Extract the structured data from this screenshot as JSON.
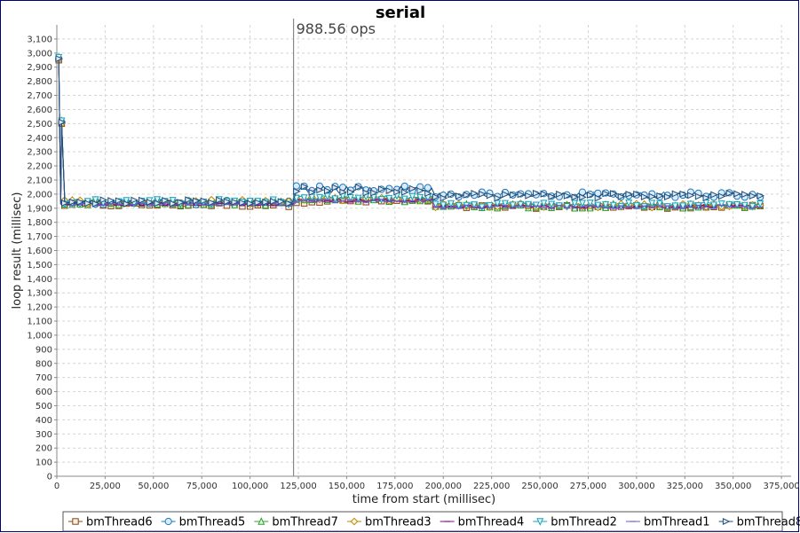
{
  "chart_data": {
    "type": "line",
    "title": "serial",
    "xlabel": "time from start (millisec)",
    "ylabel": "loop result (millisec)",
    "xlim": [
      0,
      380000
    ],
    "ylim": [
      0,
      3200
    ],
    "x_ticks": [
      "0",
      "25,000",
      "50,000",
      "75,000",
      "100,000",
      "125,000",
      "150,000",
      "175,000",
      "200,000",
      "225,000",
      "250,000",
      "275,000",
      "300,000",
      "325,000",
      "350,000",
      "375,000"
    ],
    "y_ticks": [
      "0",
      "100",
      "200",
      "300",
      "400",
      "500",
      "600",
      "700",
      "800",
      "900",
      "1,000",
      "1,100",
      "1,200",
      "1,300",
      "1,400",
      "1,500",
      "1,600",
      "1,700",
      "1,800",
      "1,900",
      "2,000",
      "2,100",
      "2,200",
      "2,300",
      "2,400",
      "2,500",
      "2,600",
      "2,700",
      "2,800",
      "2,900",
      "3,000",
      "3,100"
    ],
    "grid": true,
    "legend_position": "bottom",
    "annotation": {
      "text": "988.56 ops",
      "x": 122500
    },
    "series": [
      {
        "name": "bmThread6",
        "marker": "square",
        "color": "#8b4513",
        "segments": [
          {
            "x0": 2000,
            "x1": 122000,
            "base": 1925,
            "jitter": 15
          },
          {
            "x0": 124000,
            "x1": 195000,
            "base": 1950,
            "jitter": 15
          },
          {
            "x0": 196000,
            "x1": 364000,
            "base": 1910,
            "jitter": 12
          }
        ]
      },
      {
        "name": "bmThread5",
        "marker": "circle",
        "color": "#1f77b4",
        "segments": [
          {
            "x0": 2000,
            "x1": 122000,
            "base": 1940,
            "jitter": 15
          },
          {
            "x0": 124000,
            "x1": 195000,
            "base": 2040,
            "jitter": 20
          },
          {
            "x0": 196000,
            "x1": 364000,
            "base": 1995,
            "jitter": 20
          }
        ]
      },
      {
        "name": "bmThread7",
        "marker": "triangle-up",
        "color": "#2ca02c",
        "segments": [
          {
            "x0": 2000,
            "x1": 122000,
            "base": 1935,
            "jitter": 15
          },
          {
            "x0": 124000,
            "x1": 195000,
            "base": 1960,
            "jitter": 15
          },
          {
            "x0": 196000,
            "x1": 364000,
            "base": 1915,
            "jitter": 15
          }
        ]
      },
      {
        "name": "bmThread3",
        "marker": "diamond",
        "color": "#b8860b",
        "segments": [
          {
            "x0": 2000,
            "x1": 122000,
            "base": 1945,
            "jitter": 15
          },
          {
            "x0": 124000,
            "x1": 195000,
            "base": 1965,
            "jitter": 15
          },
          {
            "x0": 196000,
            "x1": 364000,
            "base": 1920,
            "jitter": 15
          }
        ]
      },
      {
        "name": "bmThread4",
        "marker": "dash",
        "color": "#8b008b",
        "segments": [
          {
            "x0": 2000,
            "x1": 122000,
            "base": 1930,
            "jitter": 12
          },
          {
            "x0": 124000,
            "x1": 195000,
            "base": 1955,
            "jitter": 12
          },
          {
            "x0": 196000,
            "x1": 364000,
            "base": 1912,
            "jitter": 12
          }
        ]
      },
      {
        "name": "bmThread2",
        "marker": "triangle-down",
        "color": "#17a2b8",
        "segments": [
          {
            "x0": 2000,
            "x1": 122000,
            "base": 1945,
            "jitter": 18
          },
          {
            "x0": 124000,
            "x1": 195000,
            "base": 1975,
            "jitter": 15
          },
          {
            "x0": 196000,
            "x1": 364000,
            "base": 1925,
            "jitter": 15
          }
        ]
      },
      {
        "name": "bmThread1",
        "marker": "dash",
        "color": "#6a5acd",
        "segments": [
          {
            "x0": 2000,
            "x1": 122000,
            "base": 1928,
            "jitter": 12
          },
          {
            "x0": 124000,
            "x1": 195000,
            "base": 1952,
            "jitter": 12
          },
          {
            "x0": 196000,
            "x1": 364000,
            "base": 1910,
            "jitter": 12
          }
        ]
      },
      {
        "name": "bmThread8",
        "marker": "triangle-right",
        "color": "#1f4e79",
        "segments": [
          {
            "x0": 2000,
            "x1": 122000,
            "base": 1945,
            "jitter": 15
          },
          {
            "x0": 124000,
            "x1": 195000,
            "base": 2030,
            "jitter": 25
          },
          {
            "x0": 196000,
            "x1": 364000,
            "base": 1990,
            "jitter": 20
          }
        ]
      }
    ],
    "startup_spike": {
      "x": [
        1000,
        2500,
        4000
      ],
      "y": [
        2950,
        2500,
        1980
      ]
    }
  }
}
